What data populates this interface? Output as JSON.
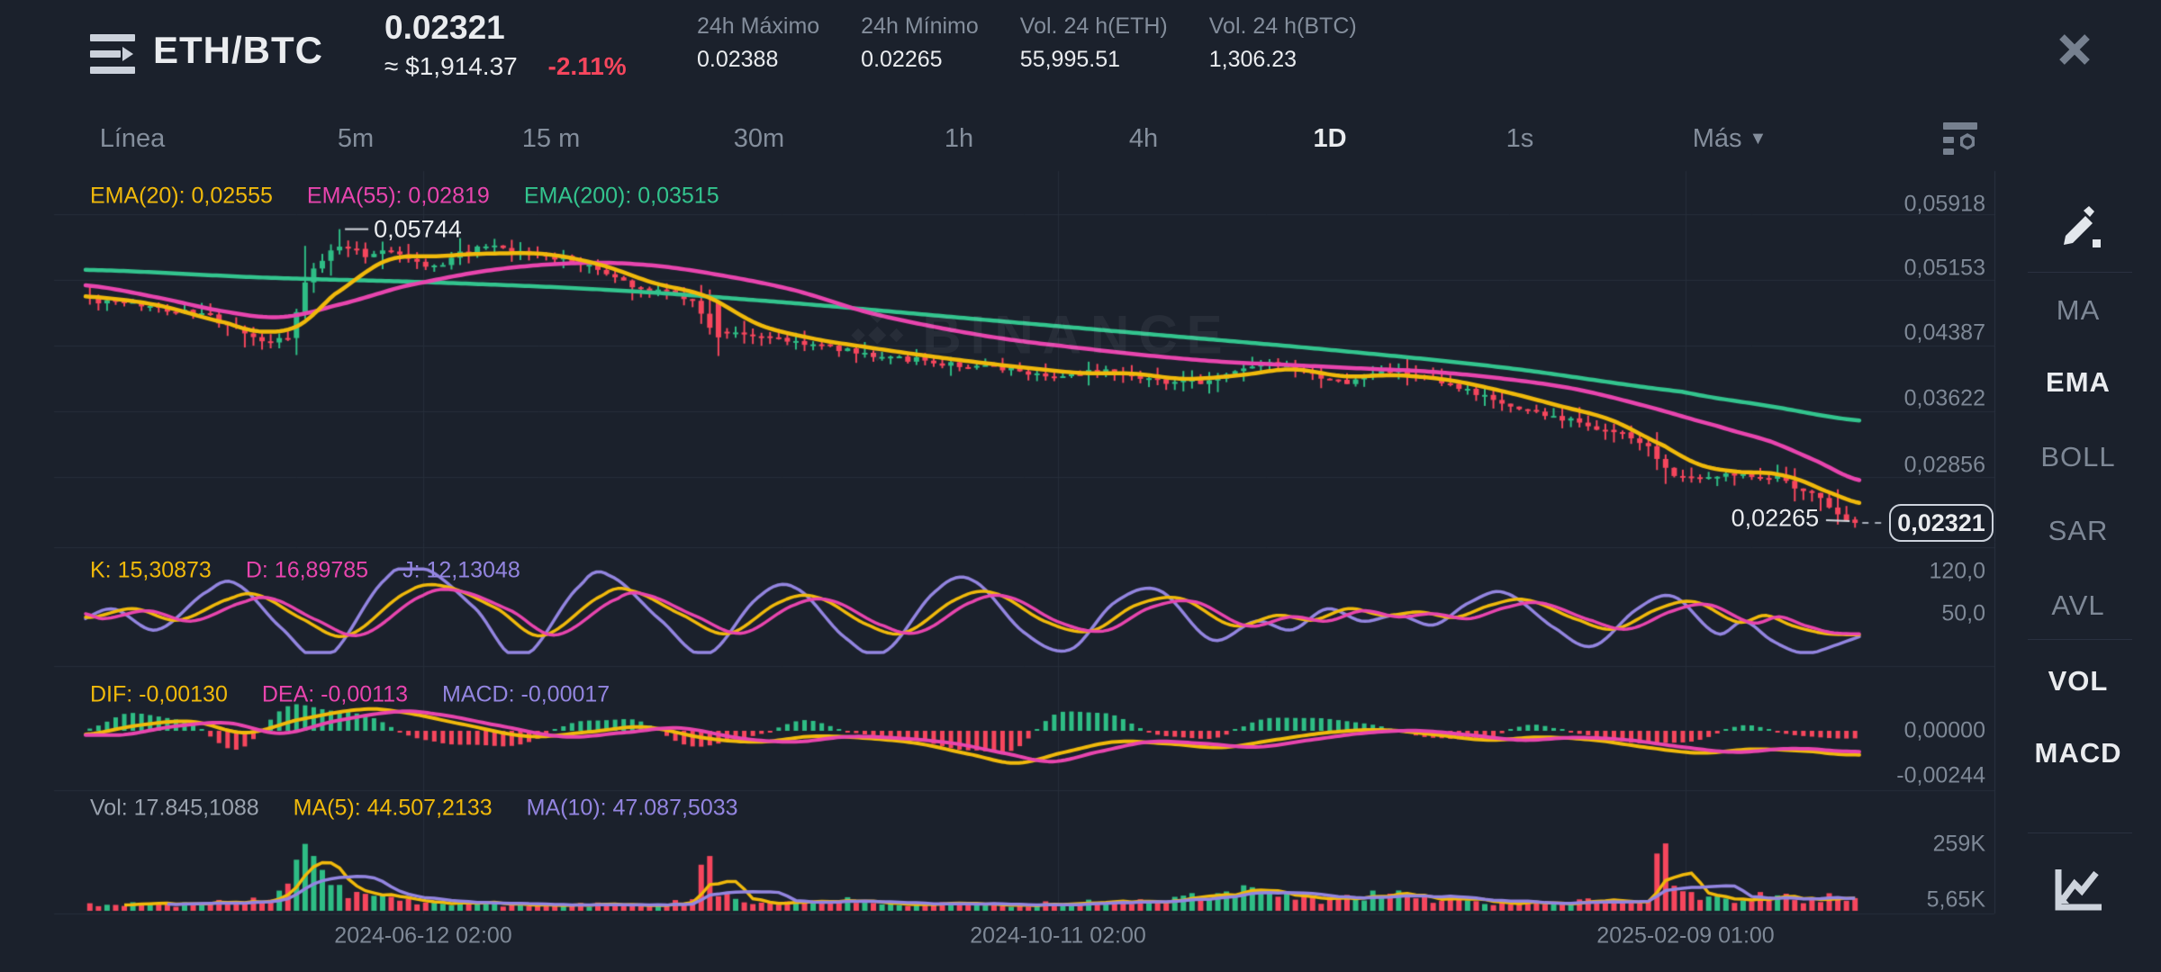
{
  "header": {
    "symbol": "ETH/BTC",
    "price": "0.02321",
    "price_usd": "≈ $1,914.37",
    "change_pct": "-2.11%",
    "stats": [
      {
        "label": "24h Máximo",
        "value": "0.02388"
      },
      {
        "label": "24h Mínimo",
        "value": "0.02265"
      },
      {
        "label": "Vol. 24 h(ETH)",
        "value": "55,995.51"
      },
      {
        "label": "Vol. 24 h(BTC)",
        "value": "1,306.23"
      }
    ]
  },
  "toolbar": {
    "tabs": [
      {
        "label": "Línea",
        "active": false
      },
      {
        "label": "5m",
        "active": false
      },
      {
        "label": "15 m",
        "active": false
      },
      {
        "label": "30m",
        "active": false
      },
      {
        "label": "1h",
        "active": false
      },
      {
        "label": "4h",
        "active": false
      },
      {
        "label": "1D",
        "active": true
      },
      {
        "label": "1s",
        "active": false
      },
      {
        "label": "Más",
        "active": false,
        "has_caret": true
      }
    ]
  },
  "sidebar": {
    "items": [
      {
        "label": "MA",
        "active": false
      },
      {
        "label": "EMA",
        "active": true
      },
      {
        "label": "BOLL",
        "active": false
      },
      {
        "label": "SAR",
        "active": false
      },
      {
        "label": "AVL",
        "active": false
      },
      {
        "label": "VOL",
        "active": true
      },
      {
        "label": "MACD",
        "active": true
      }
    ]
  },
  "watermark": "BINANCE",
  "colors": {
    "up": "#2EBD85",
    "down": "#F6465D",
    "yellow": "#F0B90B",
    "pink": "#E845AE",
    "purple": "#9385E0",
    "green_line": "#33C48E"
  },
  "chart_data": [
    {
      "type": "candlestick",
      "panel": "price",
      "legend": [
        {
          "label": "EMA(20): 0,02555",
          "color": "#F0B90B"
        },
        {
          "label": "EMA(55): 0,02819",
          "color": "#E845AE"
        },
        {
          "label": "EMA(200): 0,03515",
          "color": "#33C48E"
        }
      ],
      "y_ticks": [
        0.05918,
        0.05153,
        0.04387,
        0.03622,
        0.02856
      ],
      "y_tick_labels": [
        "0,05918",
        "0,05153",
        "0,04387",
        "0,03622",
        "0,02856"
      ],
      "x_tick_labels": [
        "2024-06-12 02:00",
        "2024-10-11 02:00",
        "2025-02-09 01:00"
      ],
      "high_annotation": {
        "label": "0,05744",
        "value": 0.05744
      },
      "low_annotation": {
        "label": "0,02265",
        "value": 0.02265
      },
      "last_price": {
        "label": "0,02321",
        "value": 0.02321
      },
      "candle_count": 206,
      "price_anchors": [
        [
          0.0,
          0.0497
        ],
        [
          0.01,
          0.049
        ],
        [
          0.03,
          0.0487
        ],
        [
          0.05,
          0.0481
        ],
        [
          0.07,
          0.0474
        ],
        [
          0.09,
          0.0455
        ],
        [
          0.105,
          0.0444
        ],
        [
          0.118,
          0.0452
        ],
        [
          0.125,
          0.0505
        ],
        [
          0.135,
          0.0538
        ],
        [
          0.148,
          0.0556
        ],
        [
          0.16,
          0.0544
        ],
        [
          0.172,
          0.0552
        ],
        [
          0.185,
          0.054
        ],
        [
          0.2,
          0.0531
        ],
        [
          0.215,
          0.0548
        ],
        [
          0.232,
          0.0552
        ],
        [
          0.25,
          0.0546
        ],
        [
          0.268,
          0.0542
        ],
        [
          0.285,
          0.0532
        ],
        [
          0.3,
          0.0519
        ],
        [
          0.315,
          0.0506
        ],
        [
          0.33,
          0.0502
        ],
        [
          0.345,
          0.049
        ],
        [
          0.356,
          0.0458
        ],
        [
          0.37,
          0.0452
        ],
        [
          0.385,
          0.045
        ],
        [
          0.4,
          0.0444
        ],
        [
          0.42,
          0.0438
        ],
        [
          0.44,
          0.043
        ],
        [
          0.46,
          0.0425
        ],
        [
          0.48,
          0.0419
        ],
        [
          0.5,
          0.0415
        ],
        [
          0.52,
          0.0411
        ],
        [
          0.54,
          0.0406
        ],
        [
          0.56,
          0.0403
        ],
        [
          0.575,
          0.0411
        ],
        [
          0.59,
          0.0406
        ],
        [
          0.61,
          0.0398
        ],
        [
          0.63,
          0.0396
        ],
        [
          0.65,
          0.0407
        ],
        [
          0.665,
          0.0417
        ],
        [
          0.68,
          0.0412
        ],
        [
          0.695,
          0.0402
        ],
        [
          0.71,
          0.0396
        ],
        [
          0.725,
          0.0404
        ],
        [
          0.74,
          0.041
        ],
        [
          0.755,
          0.04
        ],
        [
          0.77,
          0.0392
        ],
        [
          0.785,
          0.0383
        ],
        [
          0.8,
          0.0372
        ],
        [
          0.815,
          0.0363
        ],
        [
          0.83,
          0.0356
        ],
        [
          0.845,
          0.0348
        ],
        [
          0.86,
          0.034
        ],
        [
          0.872,
          0.0333
        ],
        [
          0.882,
          0.0322
        ],
        [
          0.89,
          0.0303
        ],
        [
          0.898,
          0.029
        ],
        [
          0.91,
          0.0286
        ],
        [
          0.925,
          0.0289
        ],
        [
          0.94,
          0.0289
        ],
        [
          0.952,
          0.0286
        ],
        [
          0.962,
          0.0279
        ],
        [
          0.972,
          0.027
        ],
        [
          0.982,
          0.0258
        ],
        [
          0.99,
          0.0244
        ],
        [
          1.0,
          0.0233
        ]
      ],
      "ema20_anchors": [
        [
          0,
          0.0496
        ],
        [
          0.04,
          0.0486
        ],
        [
          0.08,
          0.0465
        ],
        [
          0.1,
          0.0455
        ],
        [
          0.12,
          0.0462
        ],
        [
          0.14,
          0.0498
        ],
        [
          0.17,
          0.0538
        ],
        [
          0.2,
          0.0543
        ],
        [
          0.23,
          0.0546
        ],
        [
          0.26,
          0.0545
        ],
        [
          0.29,
          0.0533
        ],
        [
          0.32,
          0.0512
        ],
        [
          0.35,
          0.0496
        ],
        [
          0.38,
          0.0463
        ],
        [
          0.41,
          0.0447
        ],
        [
          0.44,
          0.0437
        ],
        [
          0.47,
          0.0428
        ],
        [
          0.5,
          0.042
        ],
        [
          0.53,
          0.0413
        ],
        [
          0.56,
          0.0407
        ],
        [
          0.59,
          0.0406
        ],
        [
          0.62,
          0.04
        ],
        [
          0.65,
          0.0404
        ],
        [
          0.68,
          0.0411
        ],
        [
          0.71,
          0.0403
        ],
        [
          0.74,
          0.0404
        ],
        [
          0.77,
          0.0398
        ],
        [
          0.8,
          0.0385
        ],
        [
          0.83,
          0.0369
        ],
        [
          0.86,
          0.0352
        ],
        [
          0.89,
          0.0322
        ],
        [
          0.91,
          0.03
        ],
        [
          0.93,
          0.0292
        ],
        [
          0.95,
          0.029
        ],
        [
          0.965,
          0.0283
        ],
        [
          0.98,
          0.027
        ],
        [
          1,
          0.02555
        ]
      ],
      "ema55_anchors": [
        [
          0,
          0.0509
        ],
        [
          0.04,
          0.0495
        ],
        [
          0.08,
          0.0478
        ],
        [
          0.11,
          0.0472
        ],
        [
          0.14,
          0.0485
        ],
        [
          0.18,
          0.0508
        ],
        [
          0.23,
          0.0527
        ],
        [
          0.28,
          0.0535
        ],
        [
          0.32,
          0.0532
        ],
        [
          0.36,
          0.052
        ],
        [
          0.4,
          0.0503
        ],
        [
          0.44,
          0.0478
        ],
        [
          0.48,
          0.046
        ],
        [
          0.52,
          0.0446
        ],
        [
          0.56,
          0.0436
        ],
        [
          0.6,
          0.0427
        ],
        [
          0.64,
          0.042
        ],
        [
          0.68,
          0.0416
        ],
        [
          0.72,
          0.0412
        ],
        [
          0.76,
          0.0408
        ],
        [
          0.8,
          0.04
        ],
        [
          0.84,
          0.0388
        ],
        [
          0.88,
          0.0368
        ],
        [
          0.92,
          0.0345
        ],
        [
          0.95,
          0.0327
        ],
        [
          0.975,
          0.0305
        ],
        [
          1,
          0.02819
        ]
      ],
      "ema200_anchors": [
        [
          0,
          0.0527
        ],
        [
          0.1,
          0.0518
        ],
        [
          0.2,
          0.0512
        ],
        [
          0.3,
          0.0503
        ],
        [
          0.4,
          0.0488
        ],
        [
          0.5,
          0.047
        ],
        [
          0.6,
          0.0452
        ],
        [
          0.7,
          0.0434
        ],
        [
          0.8,
          0.0413
        ],
        [
          0.9,
          0.0385
        ],
        [
          0.95,
          0.0368
        ],
        [
          1,
          0.03515
        ]
      ]
    },
    {
      "type": "line",
      "panel": "kdj",
      "legend": [
        {
          "label": "K: 15,30873",
          "color": "#F0B90B"
        },
        {
          "label": "D: 16,89785",
          "color": "#E845AE"
        },
        {
          "label": "J: 12,13048",
          "color": "#9385E0"
        }
      ],
      "y_ticks": [
        120,
        50
      ],
      "y_tick_labels": [
        "120,0",
        "50,0"
      ],
      "end_values": {
        "k": 15.30873,
        "d": 16.89785,
        "j": 12.13048
      },
      "base_anchors": [
        [
          0,
          50
        ],
        [
          0.01,
          42
        ],
        [
          0.035,
          55
        ],
        [
          0.06,
          38
        ],
        [
          0.09,
          70
        ],
        [
          0.105,
          75
        ],
        [
          0.13,
          40
        ],
        [
          0.155,
          15
        ],
        [
          0.19,
          80
        ],
        [
          0.21,
          88
        ],
        [
          0.24,
          55
        ],
        [
          0.265,
          15
        ],
        [
          0.3,
          75
        ],
        [
          0.315,
          82
        ],
        [
          0.345,
          45
        ],
        [
          0.37,
          18
        ],
        [
          0.4,
          65
        ],
        [
          0.42,
          72
        ],
        [
          0.45,
          30
        ],
        [
          0.47,
          20
        ],
        [
          0.5,
          70
        ],
        [
          0.52,
          78
        ],
        [
          0.55,
          35
        ],
        [
          0.575,
          22
        ],
        [
          0.6,
          60
        ],
        [
          0.625,
          70
        ],
        [
          0.655,
          30
        ],
        [
          0.68,
          45
        ],
        [
          0.7,
          38
        ],
        [
          0.72,
          55
        ],
        [
          0.74,
          45
        ],
        [
          0.76,
          50
        ],
        [
          0.78,
          42
        ],
        [
          0.8,
          60
        ],
        [
          0.82,
          68
        ],
        [
          0.85,
          38
        ],
        [
          0.87,
          25
        ],
        [
          0.895,
          55
        ],
        [
          0.915,
          65
        ],
        [
          0.94,
          35
        ],
        [
          0.955,
          45
        ],
        [
          0.97,
          30
        ],
        [
          0.985,
          20
        ],
        [
          1,
          16.9
        ]
      ]
    },
    {
      "type": "macd",
      "panel": "macd",
      "legend": [
        {
          "label": "DIF: -0,00130",
          "color": "#F0B90B"
        },
        {
          "label": "DEA: -0,00113",
          "color": "#E845AE"
        },
        {
          "label": "MACD: -0,00017",
          "color": "#9385E0"
        }
      ],
      "y_ticks": [
        0,
        -0.00244
      ],
      "y_tick_labels": [
        "0,00000",
        "-0,00244"
      ],
      "end_values": {
        "dif": -0.0013,
        "dea": -0.00113,
        "macd": -0.00017
      },
      "dif_anchors": [
        [
          0,
          -0.0002
        ],
        [
          0.03,
          0.0003
        ],
        [
          0.06,
          0.0005
        ],
        [
          0.09,
          -0.0001
        ],
        [
          0.12,
          0.0006
        ],
        [
          0.155,
          0.00115
        ],
        [
          0.175,
          0.00105
        ],
        [
          0.21,
          0.0004
        ],
        [
          0.25,
          -0.0003
        ],
        [
          0.285,
          -5e-05
        ],
        [
          0.315,
          0.0002
        ],
        [
          0.35,
          -0.0004
        ],
        [
          0.38,
          -0.0006
        ],
        [
          0.41,
          -0.0003
        ],
        [
          0.44,
          -0.0004
        ],
        [
          0.47,
          -0.0007
        ],
        [
          0.5,
          -0.0013
        ],
        [
          0.525,
          -0.00175
        ],
        [
          0.55,
          -0.0012
        ],
        [
          0.58,
          -0.0006
        ],
        [
          0.61,
          -0.0007
        ],
        [
          0.64,
          -0.0009
        ],
        [
          0.67,
          -0.0005
        ],
        [
          0.7,
          -0.0001
        ],
        [
          0.73,
          5e-05
        ],
        [
          0.76,
          -0.0002
        ],
        [
          0.79,
          -0.0005
        ],
        [
          0.82,
          -0.00035
        ],
        [
          0.85,
          -0.0005
        ],
        [
          0.88,
          -0.0009
        ],
        [
          0.91,
          -0.0012
        ],
        [
          0.94,
          -0.001
        ],
        [
          0.97,
          -0.0011
        ],
        [
          1,
          -0.0013
        ]
      ]
    },
    {
      "type": "volume",
      "panel": "volume",
      "legend": [
        {
          "label": "Vol: 17.845,1088",
          "color": "#9AA2AE"
        },
        {
          "label": "MA(5): 44.507,2133",
          "color": "#F0B90B"
        },
        {
          "label": "MA(10): 47.087,5033",
          "color": "#9385E0"
        }
      ],
      "y_ticks_k": [
        259,
        5.65
      ],
      "y_tick_labels": [
        "259K",
        "5,65K"
      ],
      "base_anchors_k": [
        [
          0,
          30
        ],
        [
          0.03,
          38
        ],
        [
          0.05,
          30
        ],
        [
          0.08,
          45
        ],
        [
          0.1,
          55
        ],
        [
          0.115,
          130
        ],
        [
          0.123,
          300
        ],
        [
          0.131,
          215
        ],
        [
          0.14,
          120
        ],
        [
          0.155,
          80
        ],
        [
          0.17,
          55
        ],
        [
          0.2,
          38
        ],
        [
          0.23,
          32
        ],
        [
          0.26,
          26
        ],
        [
          0.29,
          30
        ],
        [
          0.32,
          35
        ],
        [
          0.345,
          85
        ],
        [
          0.349,
          330
        ],
        [
          0.354,
          130
        ],
        [
          0.37,
          45
        ],
        [
          0.4,
          38
        ],
        [
          0.43,
          48
        ],
        [
          0.46,
          32
        ],
        [
          0.49,
          30
        ],
        [
          0.52,
          30
        ],
        [
          0.55,
          42
        ],
        [
          0.58,
          38
        ],
        [
          0.61,
          55
        ],
        [
          0.635,
          75
        ],
        [
          0.655,
          95
        ],
        [
          0.675,
          65
        ],
        [
          0.7,
          52
        ],
        [
          0.73,
          80
        ],
        [
          0.755,
          65
        ],
        [
          0.78,
          48
        ],
        [
          0.81,
          38
        ],
        [
          0.84,
          42
        ],
        [
          0.865,
          50
        ],
        [
          0.884,
          70
        ],
        [
          0.888,
          437
        ],
        [
          0.893,
          150
        ],
        [
          0.91,
          70
        ],
        [
          0.93,
          55
        ],
        [
          0.95,
          75
        ],
        [
          0.97,
          60
        ],
        [
          0.985,
          70
        ],
        [
          1,
          55
        ]
      ]
    }
  ]
}
